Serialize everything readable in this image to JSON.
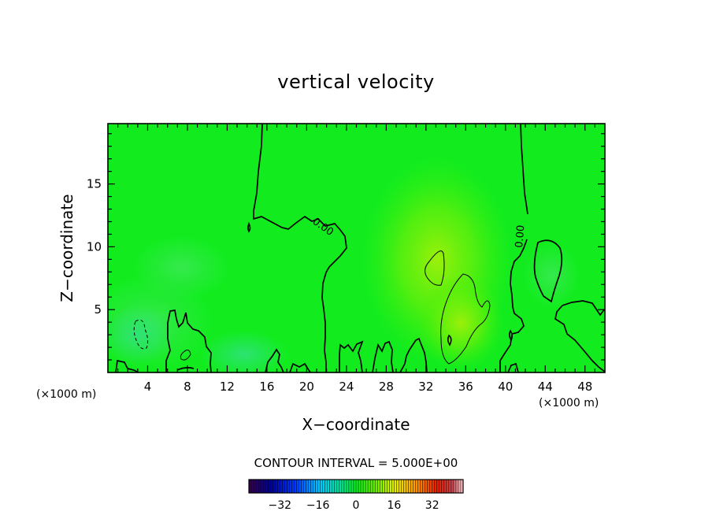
{
  "chart_data": {
    "type": "heatmap",
    "title": "vertical velocity",
    "xlabel": "X−coordinate",
    "ylabel": "Z−coordinate",
    "x_unit": "(×1000 m)",
    "x_ticks": [
      4,
      8,
      12,
      16,
      20,
      24,
      28,
      32,
      36,
      40,
      44,
      48
    ],
    "y_ticks": [
      5,
      10,
      15
    ],
    "xlim": [
      0,
      50
    ],
    "ylim": [
      0,
      19.8
    ],
    "contour_label": "0.00",
    "contour_interval": "CONTOUR INTERVAL = 5.000E+00",
    "colorbar": {
      "ticks": [
        "−32",
        "−16",
        "0",
        "16",
        "32"
      ],
      "tick_values": [
        -32,
        -16,
        0,
        16,
        32
      ],
      "range": [
        -45,
        45
      ]
    },
    "colors": {
      "background_field": "#12ec1f",
      "positive_max": "#9cf00a",
      "negative_min": "#2fe27a",
      "contour_line": "#000000"
    }
  }
}
